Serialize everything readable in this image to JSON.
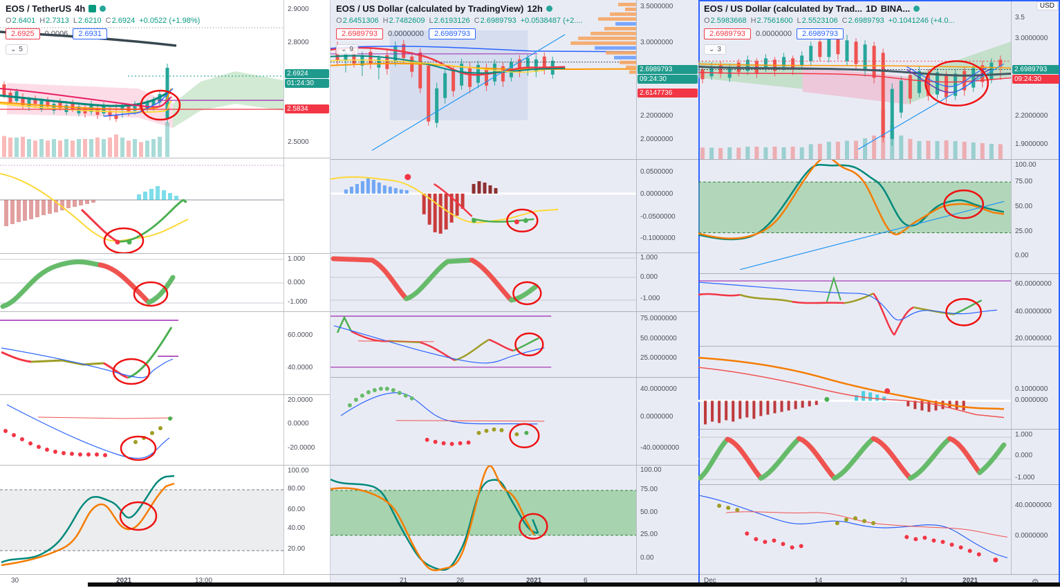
{
  "ohlc_labels": {
    "o": "O",
    "h": "H",
    "l": "L",
    "c": "C"
  },
  "panels": [
    {
      "title": "EOS / TetherUS",
      "interval": "4h",
      "ohlc": {
        "open": "2.6401",
        "high": "2.7313",
        "low": "2.6210",
        "close": "2.6924",
        "change": "+0.0522 (+1.98%)"
      },
      "quote": {
        "bid": "2.6925",
        "spread": "0.0006",
        "ask": "2.6931"
      },
      "collapse_count": "5",
      "price_axis": {
        "ticks": [
          "2.9000",
          "2.8000",
          "2.5000"
        ],
        "current": "2.6924",
        "countdown": "01:24:30",
        "level": "2.5834"
      },
      "pane_axes": {
        "ribbon": [
          "1.000",
          "0.000",
          "-1.000"
        ],
        "rsi": [
          "60.0000",
          "40.0000"
        ],
        "cci": [
          "20.0000",
          "0.0000",
          "-20.0000"
        ],
        "stoch": [
          "100.00",
          "80.00",
          "60.00",
          "40.00",
          "20.00"
        ]
      },
      "time_axis": [
        "30",
        "2021",
        "13:00"
      ]
    },
    {
      "title": "EOS / US Dollar (calculated by TradingView)",
      "interval": "12h",
      "ohlc": {
        "open": "2.6451306",
        "high": "2.7482609",
        "low": "2.6193126",
        "close": "2.6989793",
        "change": "+0.0538487 (+2...."
      },
      "quote": {
        "bid": "2.6989793",
        "spread": "0.0000000",
        "ask": "2.6989793"
      },
      "collapse_count": "9",
      "price_axis": {
        "ticks": [
          "3.5000000",
          "3.0000000",
          "2.2000000",
          "2.0000000"
        ],
        "current": "2.6989793",
        "countdown": "09:24:30",
        "level": "2.6147736"
      },
      "pane_axes": {
        "macd": [
          "0.0500000",
          "0.0000000",
          "-0.0500000",
          "-0.1000000"
        ],
        "ribbon": [
          "1.000",
          "0.000",
          "-1.000"
        ],
        "rsi": [
          "75.0000000",
          "50.0000000",
          "25.0000000"
        ],
        "cci": [
          "40.0000000",
          "0.0000000",
          "-40.0000000"
        ],
        "stoch": [
          "100.00",
          "75.00",
          "50.00",
          "25.00",
          "0.00"
        ]
      },
      "time_axis": [
        "21",
        "26",
        "2021",
        "6"
      ]
    },
    {
      "title": "EOS / US Dollar (calculated by Trad...",
      "interval": "1D",
      "exchange": "BINA...",
      "ohlc": {
        "open": "2.5983668",
        "high": "2.7561600",
        "low": "2.5523106",
        "close": "2.6989793",
        "change": "+0.1041246 (+4.0..."
      },
      "quote": {
        "bid": "2.6989793",
        "spread": "0.0000000",
        "ask": "2.6989793"
      },
      "collapse_count": "3",
      "price_axis": {
        "currency": "USD",
        "ticks": [
          "3.5",
          "3.0000000",
          "2.2000000",
          "1.9000000"
        ],
        "current": "2.6989793",
        "countdown": "09:24:30"
      },
      "pane_axes": {
        "stoch_rsi": [
          "100.00",
          "75.00",
          "50.00",
          "25.00",
          "0.00"
        ],
        "rsi": [
          "60.0000000",
          "40.0000000",
          "20.0000000"
        ],
        "macd": [
          "0.1000000",
          "0.0000000"
        ],
        "ribbon": [
          "1.000",
          "0.000",
          "-1.000"
        ],
        "cci": [
          "40.0000000",
          "0.0000000"
        ]
      },
      "time_axis": [
        "Dec",
        "14",
        "21",
        "2021"
      ]
    }
  ]
}
